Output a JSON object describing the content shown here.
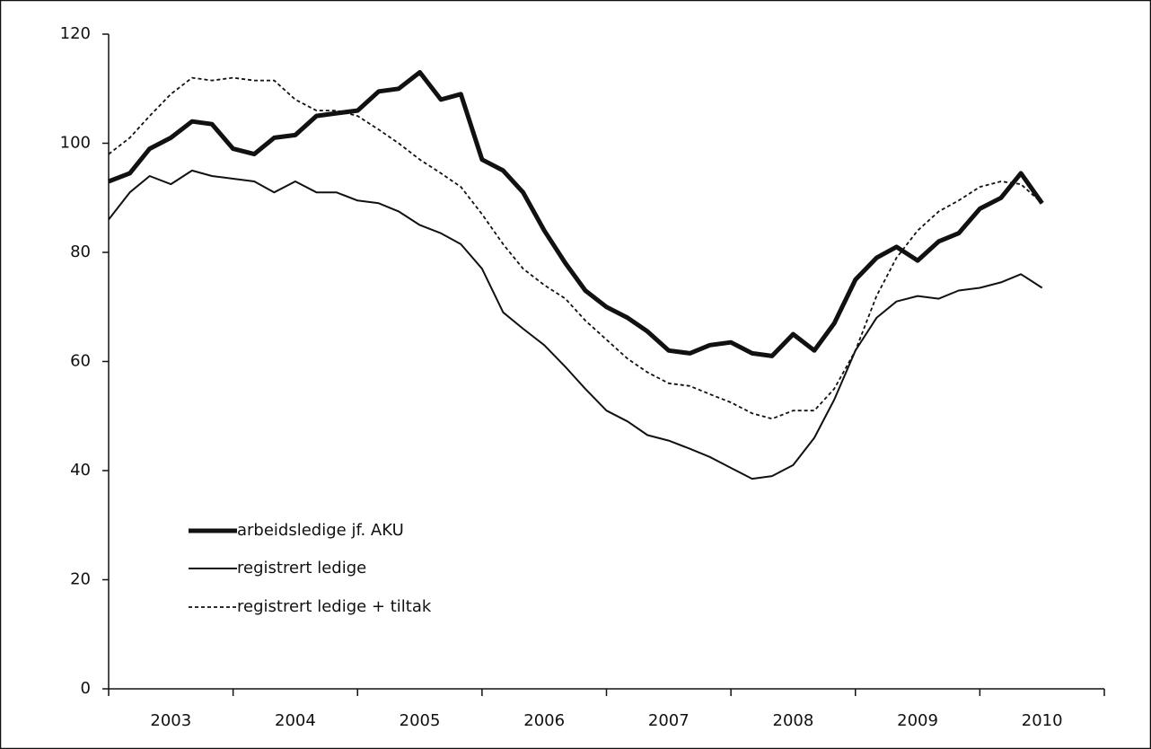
{
  "chart_data": {
    "type": "line",
    "categories": [
      "2003",
      "2004",
      "2005",
      "2006",
      "2007",
      "2008",
      "2009",
      "2010"
    ],
    "x": [
      2003,
      2003.17,
      2003.33,
      2003.5,
      2003.67,
      2003.83,
      2004,
      2004.17,
      2004.33,
      2004.5,
      2004.67,
      2004.83,
      2005,
      2005.17,
      2005.33,
      2005.5,
      2005.67,
      2005.83,
      2006,
      2006.17,
      2006.33,
      2006.5,
      2006.67,
      2006.83,
      2007,
      2007.17,
      2007.33,
      2007.5,
      2007.67,
      2007.83,
      2008,
      2008.17,
      2008.33,
      2008.5,
      2008.67,
      2008.83,
      2009,
      2009.17,
      2009.33,
      2009.5,
      2009.67,
      2009.83,
      2010,
      2010.17,
      2010.33,
      2010.5
    ],
    "xlim": [
      2003,
      2011
    ],
    "xticks": [
      2003,
      2004,
      2005,
      2006,
      2007,
      2008,
      2009,
      2010,
      2011
    ],
    "ylim": [
      0,
      120
    ],
    "yticks": [
      0,
      20,
      40,
      60,
      80,
      100,
      120
    ],
    "grid": false,
    "legend": "lower right",
    "series": [
      {
        "name": "arbeidsledige jf. AKU",
        "color": "#111111",
        "style": "bold",
        "values": [
          93,
          94.5,
          99,
          101,
          104,
          103.5,
          99,
          98,
          101,
          101.5,
          105,
          105.5,
          106,
          109.5,
          110,
          113,
          108,
          109,
          97,
          95,
          91,
          84,
          78,
          73,
          70,
          68,
          65.5,
          62,
          61.5,
          63,
          63.5,
          61.5,
          61,
          65,
          62,
          67,
          75,
          79,
          81,
          78.5,
          82,
          83.5,
          88,
          90,
          94.5,
          89
        ]
      },
      {
        "name": "registrert ledige",
        "color": "#111111",
        "style": "solid",
        "values": [
          86,
          91,
          94,
          92.5,
          95,
          94,
          93.5,
          93,
          91,
          93,
          91,
          91,
          89.5,
          89,
          87.5,
          85,
          83.5,
          81.5,
          77,
          69,
          66,
          63,
          59,
          55,
          51,
          49,
          46.5,
          45.5,
          44,
          42.5,
          40.5,
          38.5,
          39,
          41,
          46,
          53,
          62,
          68,
          71,
          72,
          71.5,
          73,
          73.5,
          74.5,
          76,
          73.5
        ]
      },
      {
        "name": "registrert ledige + tiltak",
        "color": "#111111",
        "style": "dashed",
        "values": [
          98,
          101,
          105,
          109,
          112,
          111.5,
          112,
          111.5,
          111.5,
          108,
          106,
          106,
          105,
          102.5,
          100,
          97,
          94.5,
          92,
          87,
          81.5,
          77,
          74,
          71.5,
          67.5,
          64,
          60.5,
          58,
          56,
          55.5,
          54,
          52.5,
          50.5,
          49.5,
          51,
          51,
          55,
          62,
          72,
          79,
          84,
          87.5,
          89.5,
          92,
          93,
          92.5,
          89
        ]
      }
    ]
  }
}
